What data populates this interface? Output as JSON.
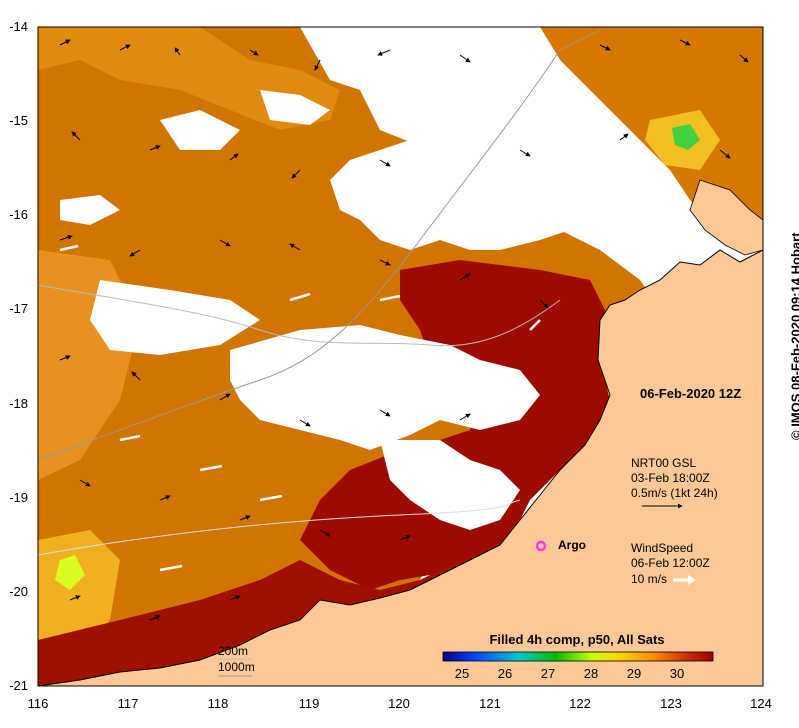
{
  "map": {
    "x_ticks": [
      "116",
      "117",
      "118",
      "119",
      "120",
      "121",
      "122",
      "123",
      "124"
    ],
    "y_ticks": [
      "-14",
      "-15",
      "-16",
      "-17",
      "-18",
      "-19",
      "-20",
      "-21"
    ],
    "valid_time": "06-Feb-2020 12Z",
    "credit": "© IMOS 08-Feb-2020 09:14 Hobart"
  },
  "currents_legend": {
    "line1": "NRT00 GSL",
    "line2": "03-Feb 18:00Z",
    "line3": "0.5m/s (1kt 24h)"
  },
  "wind_legend": {
    "line1": "WindSpeed",
    "line2": "06-Feb 12:00Z",
    "line3": "10 m/s"
  },
  "argo": {
    "label": "Argo",
    "color": "#ff33ff"
  },
  "bathymetry": {
    "label_200": "200m",
    "label_1000": "1000m"
  },
  "colorbar": {
    "title": "Filled 4h comp, p50, All Sats",
    "ticks": [
      "25",
      "26",
      "27",
      "28",
      "29",
      "30"
    ],
    "stops": [
      "#00008b",
      "#0044ff",
      "#00c8c8",
      "#00c000",
      "#c8ff00",
      "#ffd000",
      "#ff8c00",
      "#d03000",
      "#9b0000"
    ]
  },
  "colors": {
    "land": "#fcc996",
    "warm": "#c85a00",
    "hot": "#a00c00"
  }
}
